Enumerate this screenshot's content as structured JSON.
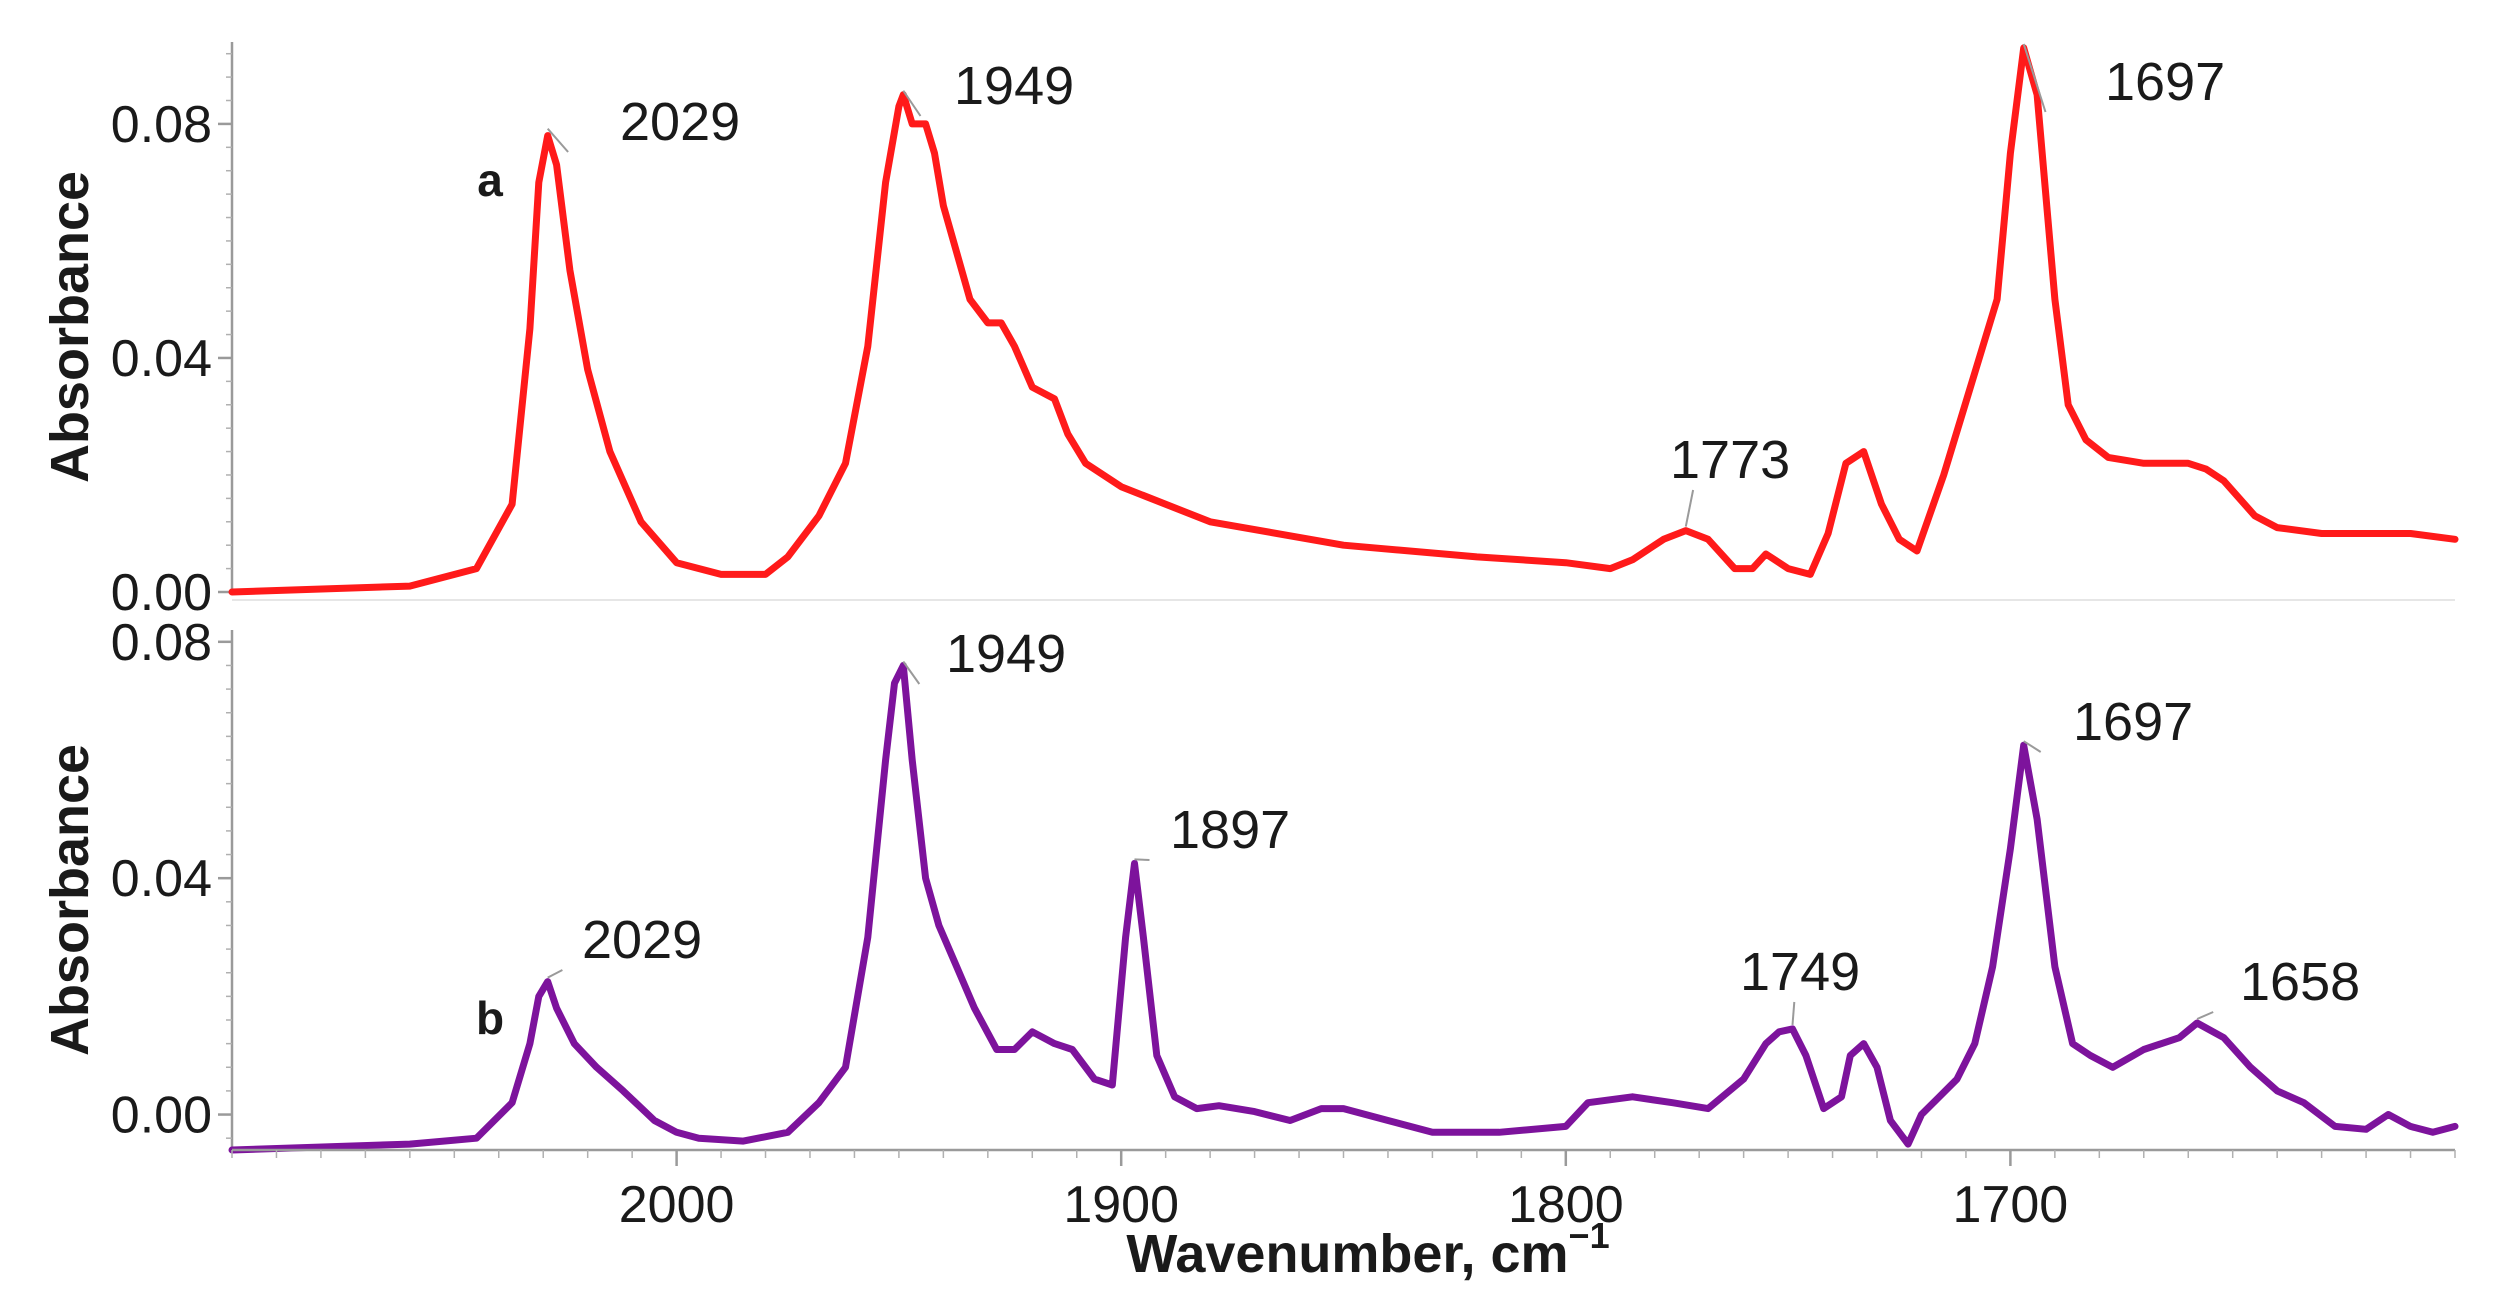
{
  "chart_data": {
    "type": "line",
    "xlabel": "Wavenumber, cm",
    "xlabel_sup": "−1",
    "xlim": [
      2100,
      1600
    ],
    "x_reversed": true,
    "xticks": [
      2000,
      1900,
      1800,
      1700
    ],
    "panels": [
      {
        "id": "a",
        "label": "a",
        "ylabel": "Absorbance",
        "ylim": [
          0,
          0.094
        ],
        "yticks": [
          "0.00",
          "0.04",
          "0.08"
        ],
        "yticks_values": [
          0,
          0.04,
          0.08
        ],
        "color": "#ff1a1a",
        "peak_labels": [
          {
            "text": "2029",
            "x": 2029,
            "y": 0.0785
          },
          {
            "text": "1949",
            "x": 1949,
            "y": 0.085
          },
          {
            "text": "1773",
            "x": 1773,
            "y": 0.0105
          },
          {
            "text": "1697",
            "x": 1697,
            "y": 0.093
          }
        ],
        "series": [
          {
            "x": [
              2100,
              2060,
              2045,
              2037,
              2033,
              2031,
              2029,
              2027,
              2024,
              2020,
              2015,
              2008,
              2000,
              1990,
              1980,
              1975,
              1968,
              1962,
              1957,
              1953,
              1950,
              1949,
              1947,
              1944,
              1942,
              1940,
              1937,
              1934,
              1930,
              1927,
              1924,
              1920,
              1915,
              1912,
              1908,
              1900,
              1880,
              1850,
              1820,
              1800,
              1790,
              1785,
              1778,
              1773,
              1768,
              1762,
              1758,
              1755,
              1750,
              1745,
              1741,
              1737,
              1733,
              1729,
              1725,
              1721,
              1715,
              1709,
              1703,
              1700,
              1697,
              1694,
              1690,
              1687,
              1683,
              1678,
              1670,
              1660,
              1656,
              1652,
              1645,
              1640,
              1630,
              1620,
              1610,
              1600
            ],
            "y": [
              0,
              0.001,
              0.004,
              0.015,
              0.045,
              0.07,
              0.078,
              0.073,
              0.055,
              0.038,
              0.024,
              0.012,
              0.005,
              0.003,
              0.003,
              0.006,
              0.013,
              0.022,
              0.042,
              0.07,
              0.083,
              0.085,
              0.08,
              0.08,
              0.075,
              0.066,
              0.058,
              0.05,
              0.046,
              0.046,
              0.042,
              0.035,
              0.033,
              0.027,
              0.022,
              0.018,
              0.012,
              0.008,
              0.006,
              0.005,
              0.004,
              0.0055,
              0.009,
              0.0105,
              0.009,
              0.004,
              0.004,
              0.0065,
              0.004,
              0.003,
              0.01,
              0.022,
              0.024,
              0.015,
              0.009,
              0.007,
              0.02,
              0.035,
              0.05,
              0.075,
              0.093,
              0.085,
              0.05,
              0.032,
              0.026,
              0.023,
              0.022,
              0.022,
              0.021,
              0.019,
              0.013,
              0.011,
              0.01,
              0.01,
              0.01,
              0.009
            ]
          }
        ]
      },
      {
        "id": "b",
        "label": "b",
        "ylabel": "Absorbance",
        "ylim": [
          -0.006,
          0.082
        ],
        "yticks": [
          "0.00",
          "0.04",
          "0.08"
        ],
        "yticks_values": [
          0,
          0.04,
          0.08
        ],
        "color": "#7d139c",
        "peak_labels": [
          {
            "text": "2029",
            "x": 2029,
            "y": 0.0225
          },
          {
            "text": "1949",
            "x": 1949,
            "y": 0.076
          },
          {
            "text": "1897",
            "x": 1897,
            "y": 0.0425
          },
          {
            "text": "1749",
            "x": 1749,
            "y": 0.0145
          },
          {
            "text": "1697",
            "x": 1697,
            "y": 0.0625
          },
          {
            "text": "1658",
            "x": 1658,
            "y": 0.0155
          }
        ],
        "series": [
          {
            "x": [
              2100,
              2060,
              2045,
              2037,
              2033,
              2031,
              2029,
              2027,
              2023,
              2018,
              2012,
              2005,
              2000,
              1995,
              1985,
              1975,
              1968,
              1962,
              1957,
              1953,
              1951,
              1949,
              1947,
              1944,
              1941,
              1937,
              1933,
              1928,
              1924,
              1920,
              1915,
              1911,
              1906,
              1902,
              1899,
              1897,
              1895,
              1892,
              1888,
              1883,
              1878,
              1870,
              1862,
              1855,
              1850,
              1840,
              1830,
              1815,
              1800,
              1795,
              1785,
              1776,
              1768,
              1760,
              1755,
              1752,
              1749,
              1746,
              1742,
              1738,
              1736,
              1733,
              1730,
              1727,
              1723,
              1720,
              1716,
              1712,
              1708,
              1704,
              1700,
              1697,
              1694,
              1690,
              1686,
              1682,
              1677,
              1670,
              1662,
              1658,
              1652,
              1646,
              1640,
              1634,
              1627,
              1620,
              1615,
              1610,
              1605,
              1600
            ],
            "y": [
              -0.006,
              -0.005,
              -0.004,
              0.002,
              0.012,
              0.02,
              0.0225,
              0.018,
              0.012,
              0.008,
              0.004,
              -0.001,
              -0.003,
              -0.004,
              -0.0045,
              -0.003,
              0.002,
              0.008,
              0.03,
              0.06,
              0.073,
              0.076,
              0.06,
              0.04,
              0.032,
              0.025,
              0.018,
              0.011,
              0.011,
              0.014,
              0.012,
              0.011,
              0.006,
              0.005,
              0.03,
              0.0425,
              0.03,
              0.01,
              0.003,
              0.001,
              0.0015,
              0.0005,
              -0.001,
              0.001,
              0.001,
              -0.001,
              -0.003,
              -0.003,
              -0.002,
              0.002,
              0.003,
              0.002,
              0.001,
              0.006,
              0.012,
              0.014,
              0.0145,
              0.01,
              0.001,
              0.003,
              0.01,
              0.012,
              0.008,
              -0.001,
              -0.005,
              0.0,
              0.003,
              0.006,
              0.012,
              0.025,
              0.045,
              0.0625,
              0.05,
              0.025,
              0.012,
              0.01,
              0.008,
              0.011,
              0.013,
              0.0155,
              0.013,
              0.008,
              0.004,
              0.002,
              -0.002,
              -0.0025,
              0.0,
              -0.002,
              -0.003,
              -0.002
            ]
          }
        ]
      }
    ]
  }
}
